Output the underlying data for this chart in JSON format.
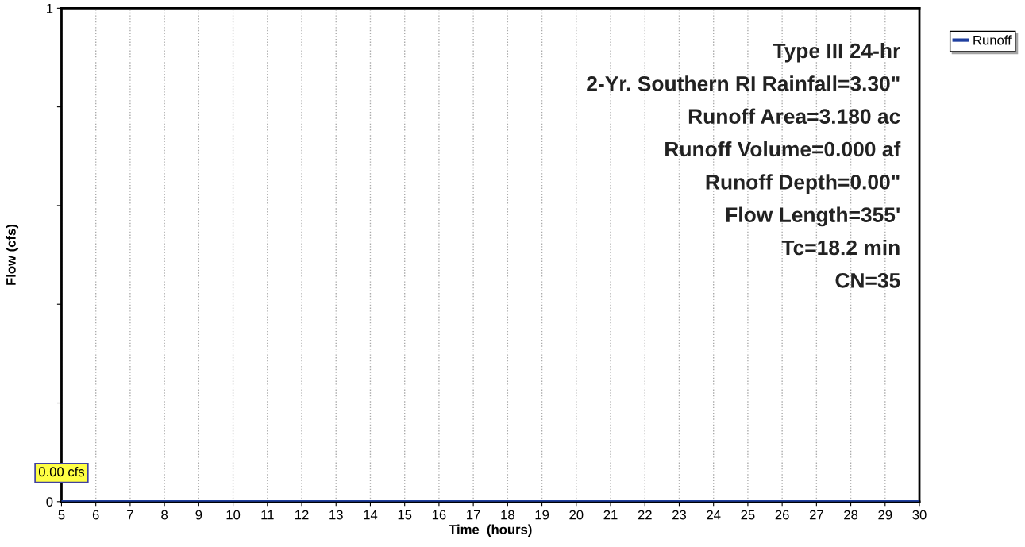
{
  "chart_data": {
    "type": "line",
    "xlabel": "Time  (hours)",
    "ylabel": "Flow (cfs)",
    "series": [
      {
        "name": "Runoff",
        "color": "#1f3f9f",
        "x": [
          5,
          30
        ],
        "values": [
          0,
          0
        ]
      }
    ],
    "xlim": [
      5,
      30
    ],
    "xticks": [
      5,
      6,
      7,
      8,
      9,
      10,
      11,
      12,
      13,
      14,
      15,
      16,
      17,
      18,
      19,
      20,
      21,
      22,
      23,
      24,
      25,
      26,
      27,
      28,
      29,
      30
    ],
    "ylim": [
      0,
      1
    ],
    "yticks": [
      0,
      {
        "value": 0.2,
        "label": null
      },
      {
        "value": 0.4,
        "label": null
      },
      {
        "value": 0.6,
        "label": null
      },
      {
        "value": 0.8,
        "label": null
      },
      1
    ],
    "grid": "x",
    "legend": "top right",
    "marker": "none",
    "line_style": "solid",
    "annotations": [
      {
        "text": "0.00 cfs",
        "x": 5,
        "y": 0
      },
      "Type III 24-hr",
      "2-Yr. Southern RI Rainfall=3.30\"",
      "Runoff Area=3.180 ac",
      "Runoff Volume=0.000 af",
      "Runoff Depth=0.00\"",
      "Flow Length=355'",
      "Tc=18.2 min",
      "CN=35"
    ]
  }
}
